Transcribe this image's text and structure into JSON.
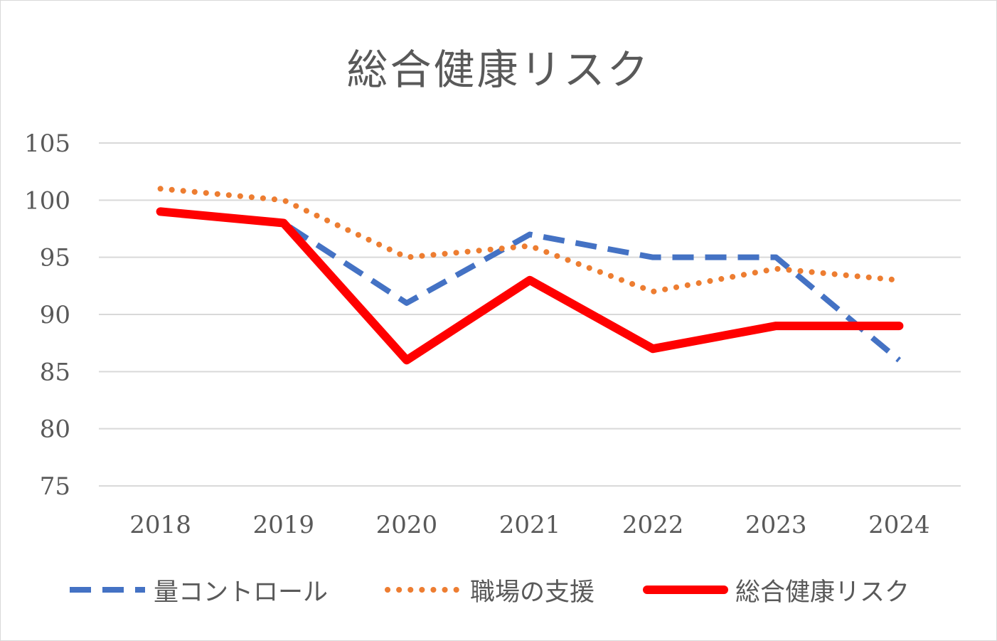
{
  "chart_data": {
    "type": "line",
    "title": "総合健康リスク",
    "categories": [
      "2018",
      "2019",
      "2020",
      "2021",
      "2022",
      "2023",
      "2024"
    ],
    "ylim": [
      75,
      105
    ],
    "yticks": [
      "105",
      "100",
      "95",
      "90",
      "85",
      "80",
      "75"
    ],
    "grid": true,
    "legend_position": "bottom",
    "series": [
      {
        "name": "量コントロール",
        "values": [
          99,
          98,
          91,
          97,
          95,
          95,
          86
        ],
        "color": "#4472C4",
        "style": "dashed"
      },
      {
        "name": "職場の支援",
        "values": [
          101,
          100,
          95,
          96,
          92,
          94,
          93
        ],
        "color": "#ED7D31",
        "style": "dotted"
      },
      {
        "name": "総合健康リスク",
        "values": [
          99,
          98,
          86,
          93,
          87,
          89,
          89
        ],
        "color": "#FF0000",
        "style": "solid"
      }
    ]
  }
}
